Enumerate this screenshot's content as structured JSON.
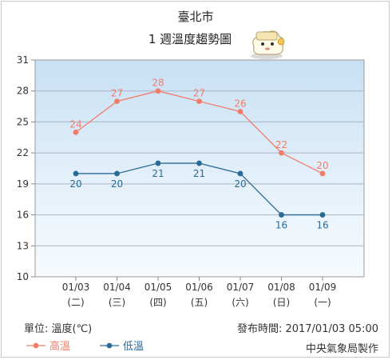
{
  "chart_data": {
    "type": "line",
    "title": "臺北市",
    "subtitle": "1 週溫度趨勢圖",
    "categories": [
      "01/03",
      "01/04",
      "01/05",
      "01/06",
      "01/07",
      "01/08",
      "01/09"
    ],
    "weekdays": [
      "(二)",
      "(三)",
      "(四)",
      "(五)",
      "(六)",
      "(日)",
      "(一)"
    ],
    "series": [
      {
        "name": "高溫",
        "color": "#f27c6a",
        "values": [
          24,
          27,
          28,
          27,
          26,
          22,
          20
        ]
      },
      {
        "name": "低溫",
        "color": "#2a6a96",
        "values": [
          20,
          20,
          21,
          21,
          20,
          16,
          16
        ]
      }
    ],
    "ylim": [
      10,
      31
    ],
    "yticks": [
      "10",
      "13",
      "16",
      "19",
      "22",
      "25",
      "28",
      "31"
    ],
    "grid": true,
    "legend": "bottom-left"
  },
  "footer": {
    "unit_label": "單位: 溫度(℃)",
    "published": "發布時間: 2017/01/03 05:00",
    "source": "中央氣象局製作"
  },
  "mascot_icon": "cloud-mascot-icon"
}
